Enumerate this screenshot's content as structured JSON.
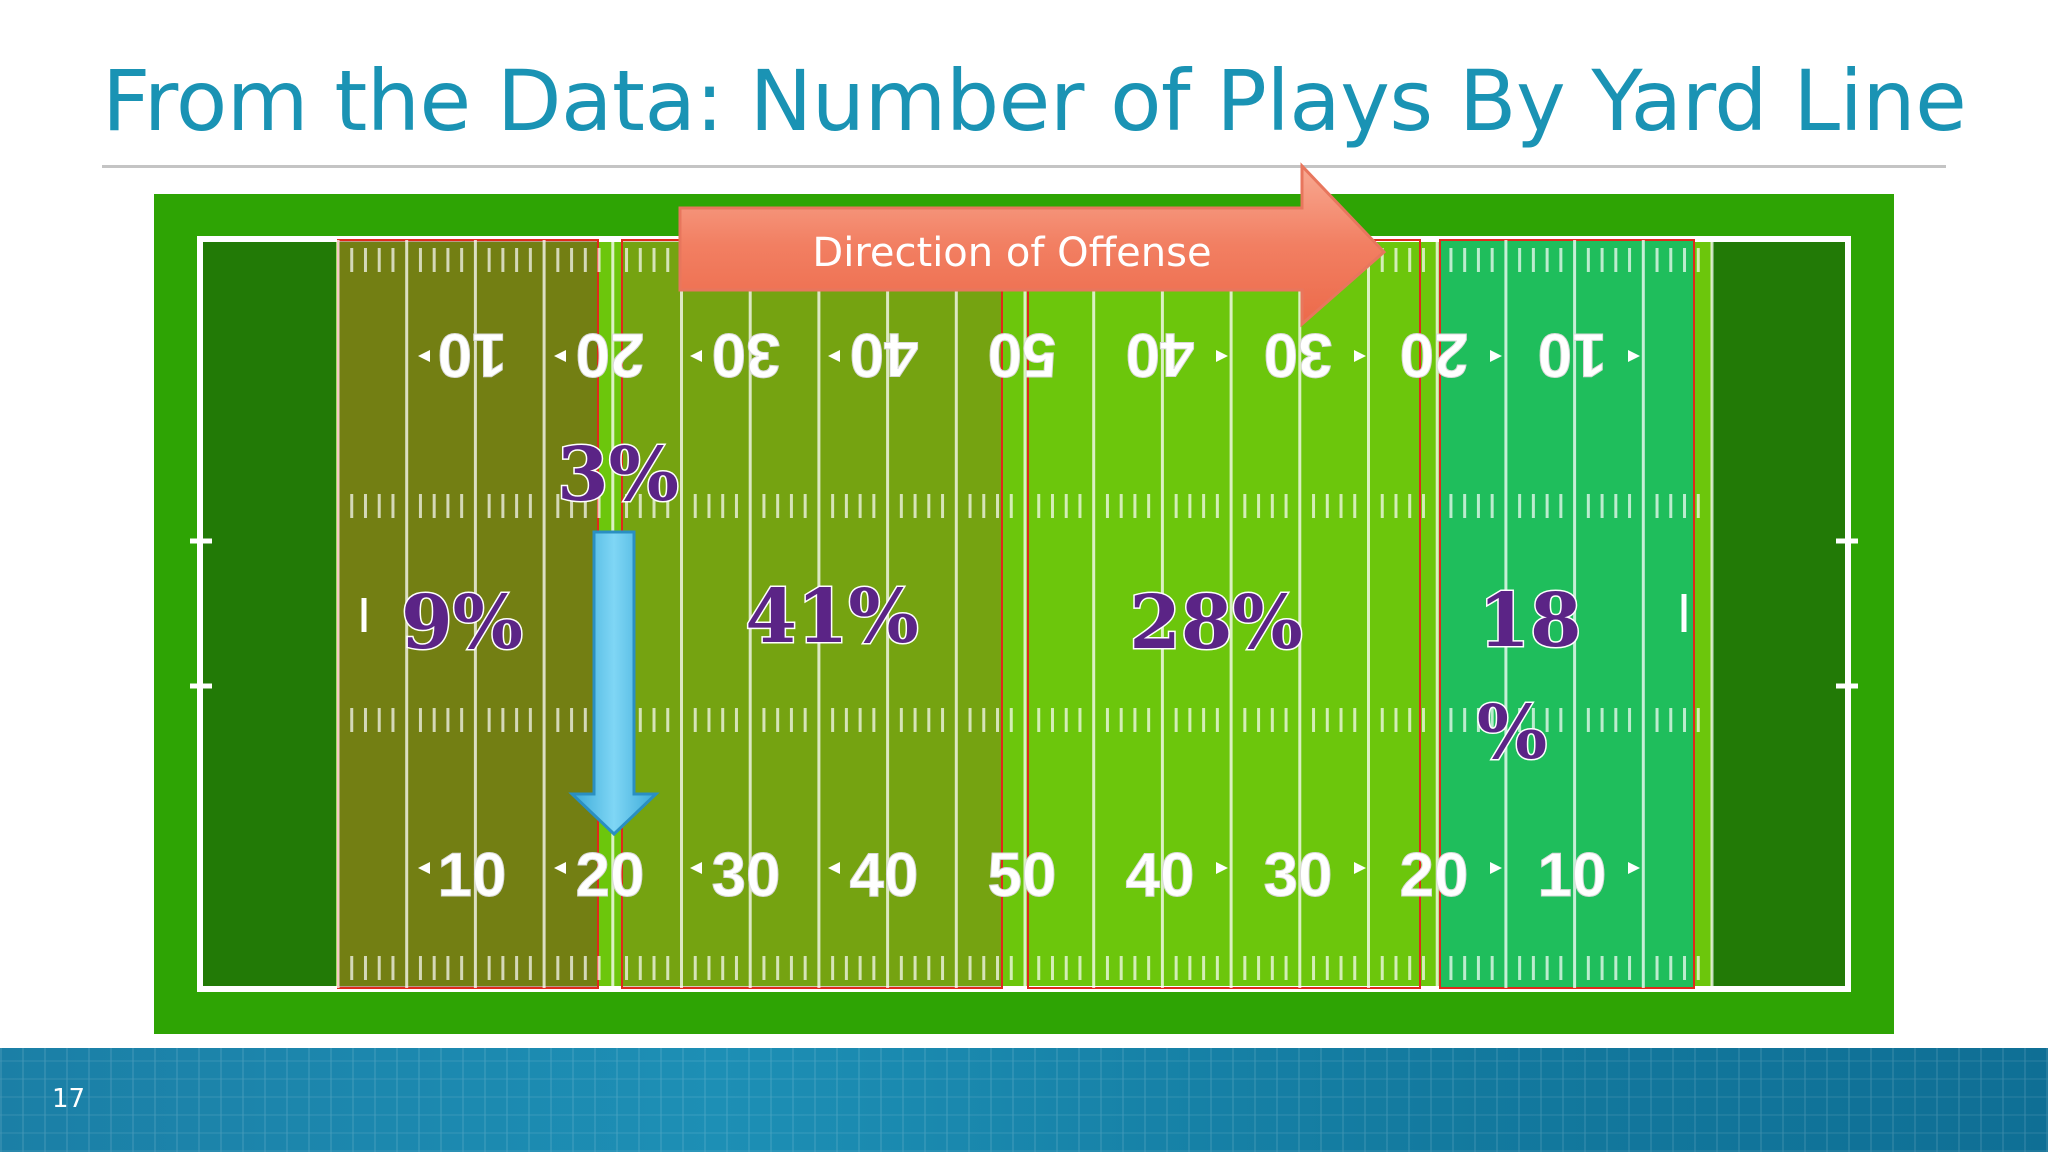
{
  "slide": {
    "title": "From the Data: Number of Plays By Yard Line",
    "page_number": "17"
  },
  "field": {
    "yard_numbers": [
      "10",
      "20",
      "30",
      "40",
      "50",
      "40",
      "30",
      "20",
      "10"
    ],
    "direction_label": "Direction of Offense"
  },
  "zones": [
    {
      "label": "9%",
      "value": 9
    },
    {
      "label": "3%",
      "value": 3
    },
    {
      "label": "41%",
      "value": 41
    },
    {
      "label": "28%",
      "value": 28
    },
    {
      "label_line1": "18",
      "label_line2": "%",
      "value": 18
    }
  ],
  "colors": {
    "title": "#1a93b4",
    "field_green": "#2ea404",
    "endzone": "#227a06",
    "pct_fill": "#5b2486",
    "arrow_offense": "#f3826a",
    "arrow_down": "#4fc0ea"
  }
}
